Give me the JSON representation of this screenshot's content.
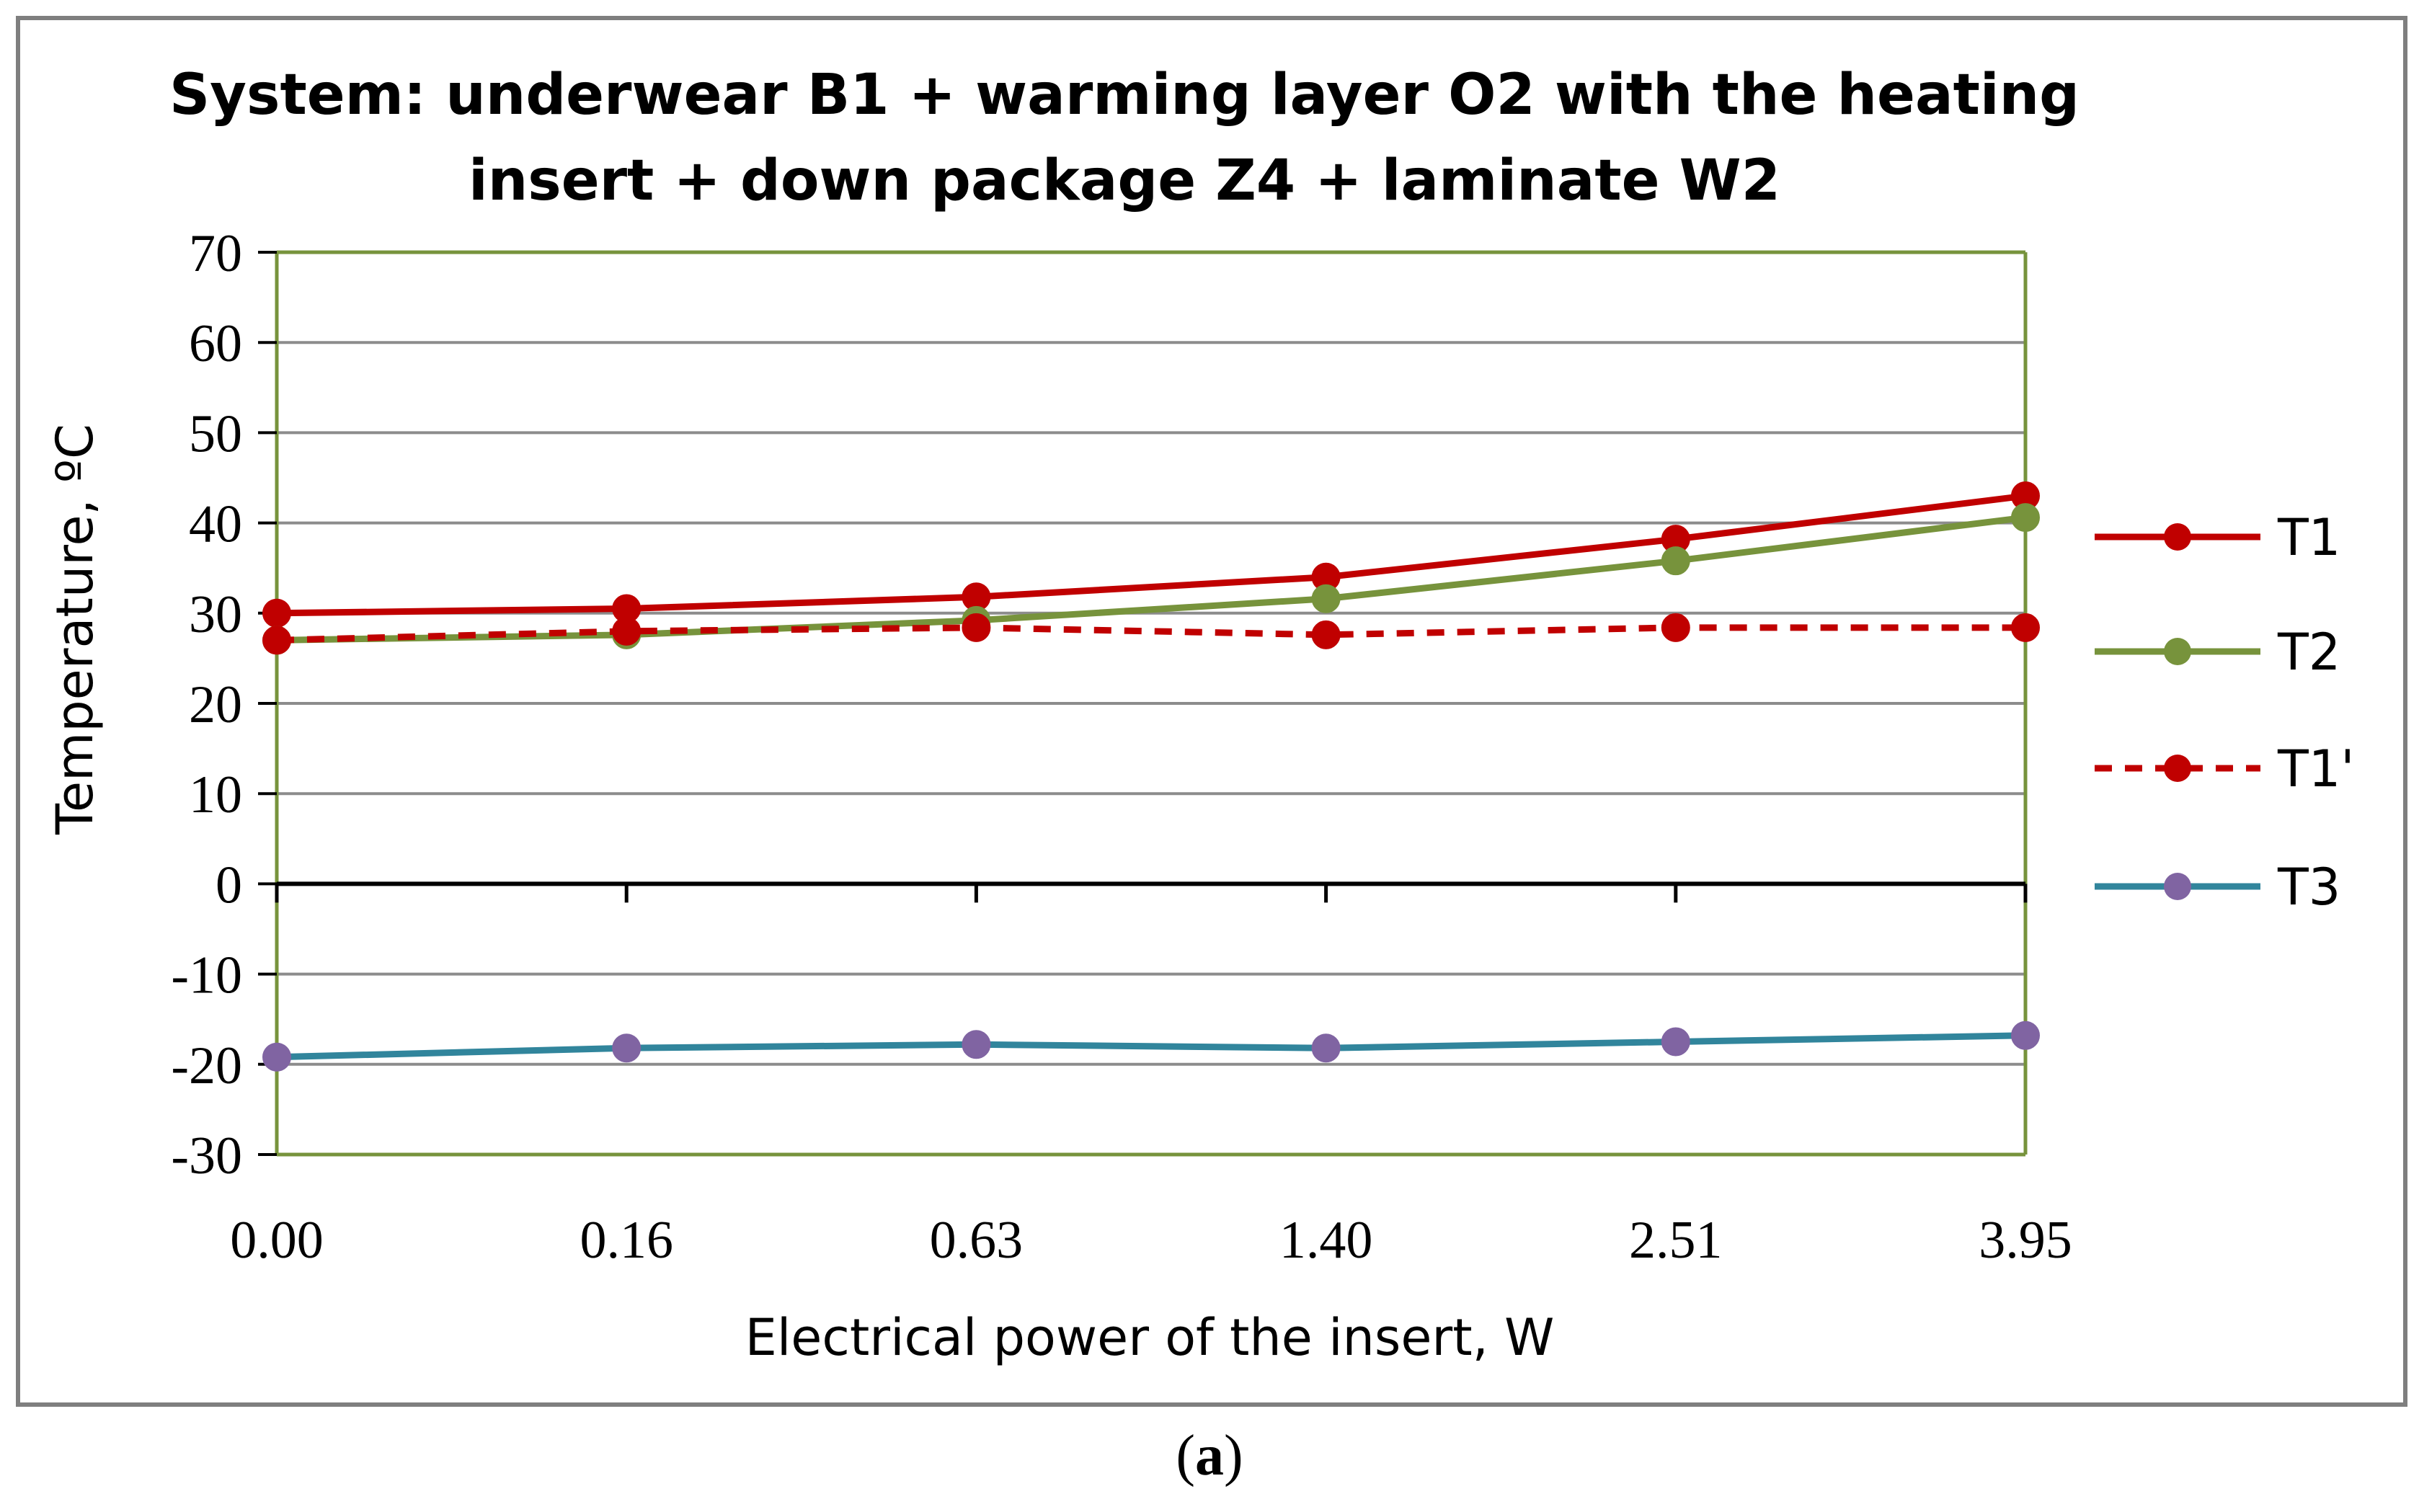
{
  "chart_data": {
    "type": "line",
    "title_lines": [
      "System: underwear B1 + warming layer O2 with the heating",
      "insert + down package Z4 + laminate W2"
    ],
    "xlabel": "Electrical power of the insert, W",
    "ylabel": "Temperature, ºC",
    "categories": [
      "0.00",
      "0.16",
      "0.63",
      "1.40",
      "2.51",
      "3.95"
    ],
    "ylim": [
      -30,
      70
    ],
    "yticks": [
      70,
      60,
      50,
      40,
      30,
      20,
      10,
      0,
      -10,
      -20,
      -30
    ],
    "ytick_labels": [
      "70",
      "60",
      "50",
      "40",
      "30",
      "20",
      "10",
      "0",
      "-10",
      "-20",
      "-30"
    ],
    "grid": true,
    "legend_position": "right",
    "series": [
      {
        "name": "T1",
        "values": [
          30.0,
          30.5,
          31.8,
          34.0,
          38.2,
          43.0
        ],
        "color": "#c00000",
        "marker_color": "#c00000",
        "dashed": false
      },
      {
        "name": "T2",
        "values": [
          27.0,
          27.6,
          29.2,
          31.6,
          35.8,
          40.6
        ],
        "color": "#77933c",
        "marker_color": "#77933c",
        "dashed": false
      },
      {
        "name": "T1'",
        "values": [
          27.0,
          28.0,
          28.4,
          27.6,
          28.4,
          28.4
        ],
        "color": "#c00000",
        "marker_color": "#c00000",
        "dashed": true
      },
      {
        "name": "T3",
        "values": [
          -19.2,
          -18.2,
          -17.8,
          -18.2,
          -17.5,
          -16.8
        ],
        "color": "#31859c",
        "marker_color": "#8064a2",
        "dashed": false
      }
    ]
  },
  "caption": {
    "open": "(",
    "letter": "a",
    "close": ")"
  },
  "colors": {
    "plot_border": "#77933c",
    "grid": "#8c8c8c",
    "frame": "#7f7f7f"
  }
}
